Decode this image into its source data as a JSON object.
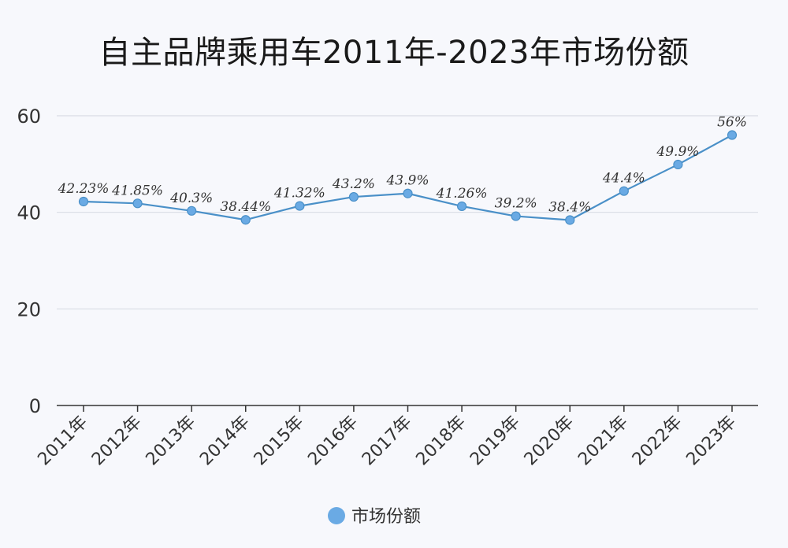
{
  "chart_data": {
    "type": "line",
    "title": "自主品牌乘用车2011年-2023年市场份额",
    "categories": [
      "2011年",
      "2012年",
      "2013年",
      "2014年",
      "2015年",
      "2016年",
      "2017年",
      "2018年",
      "2019年",
      "2020年",
      "2021年",
      "2022年",
      "2023年"
    ],
    "series": [
      {
        "name": "市场份额",
        "values": [
          42.23,
          41.85,
          40.3,
          38.44,
          41.32,
          43.2,
          43.9,
          41.26,
          39.2,
          38.4,
          44.4,
          49.9,
          56
        ],
        "labels": [
          "42.23%",
          "41.85%",
          "40.3%",
          "38.44%",
          "41.32%",
          "43.2%",
          "43.9%",
          "41.26%",
          "39.2%",
          "38.4%",
          "44.4%",
          "49.9%",
          "56%"
        ]
      }
    ],
    "ylim": [
      0,
      60
    ],
    "yticks": [
      "0",
      "20",
      "40",
      "60"
    ],
    "ytick_values": [
      0,
      20,
      40,
      60
    ],
    "grid": true,
    "legend_position": "bottom",
    "colors": {
      "line": "#4a90c8",
      "marker": "#6aaae4",
      "grid": "#d9dce4",
      "axis": "#333333"
    }
  }
}
